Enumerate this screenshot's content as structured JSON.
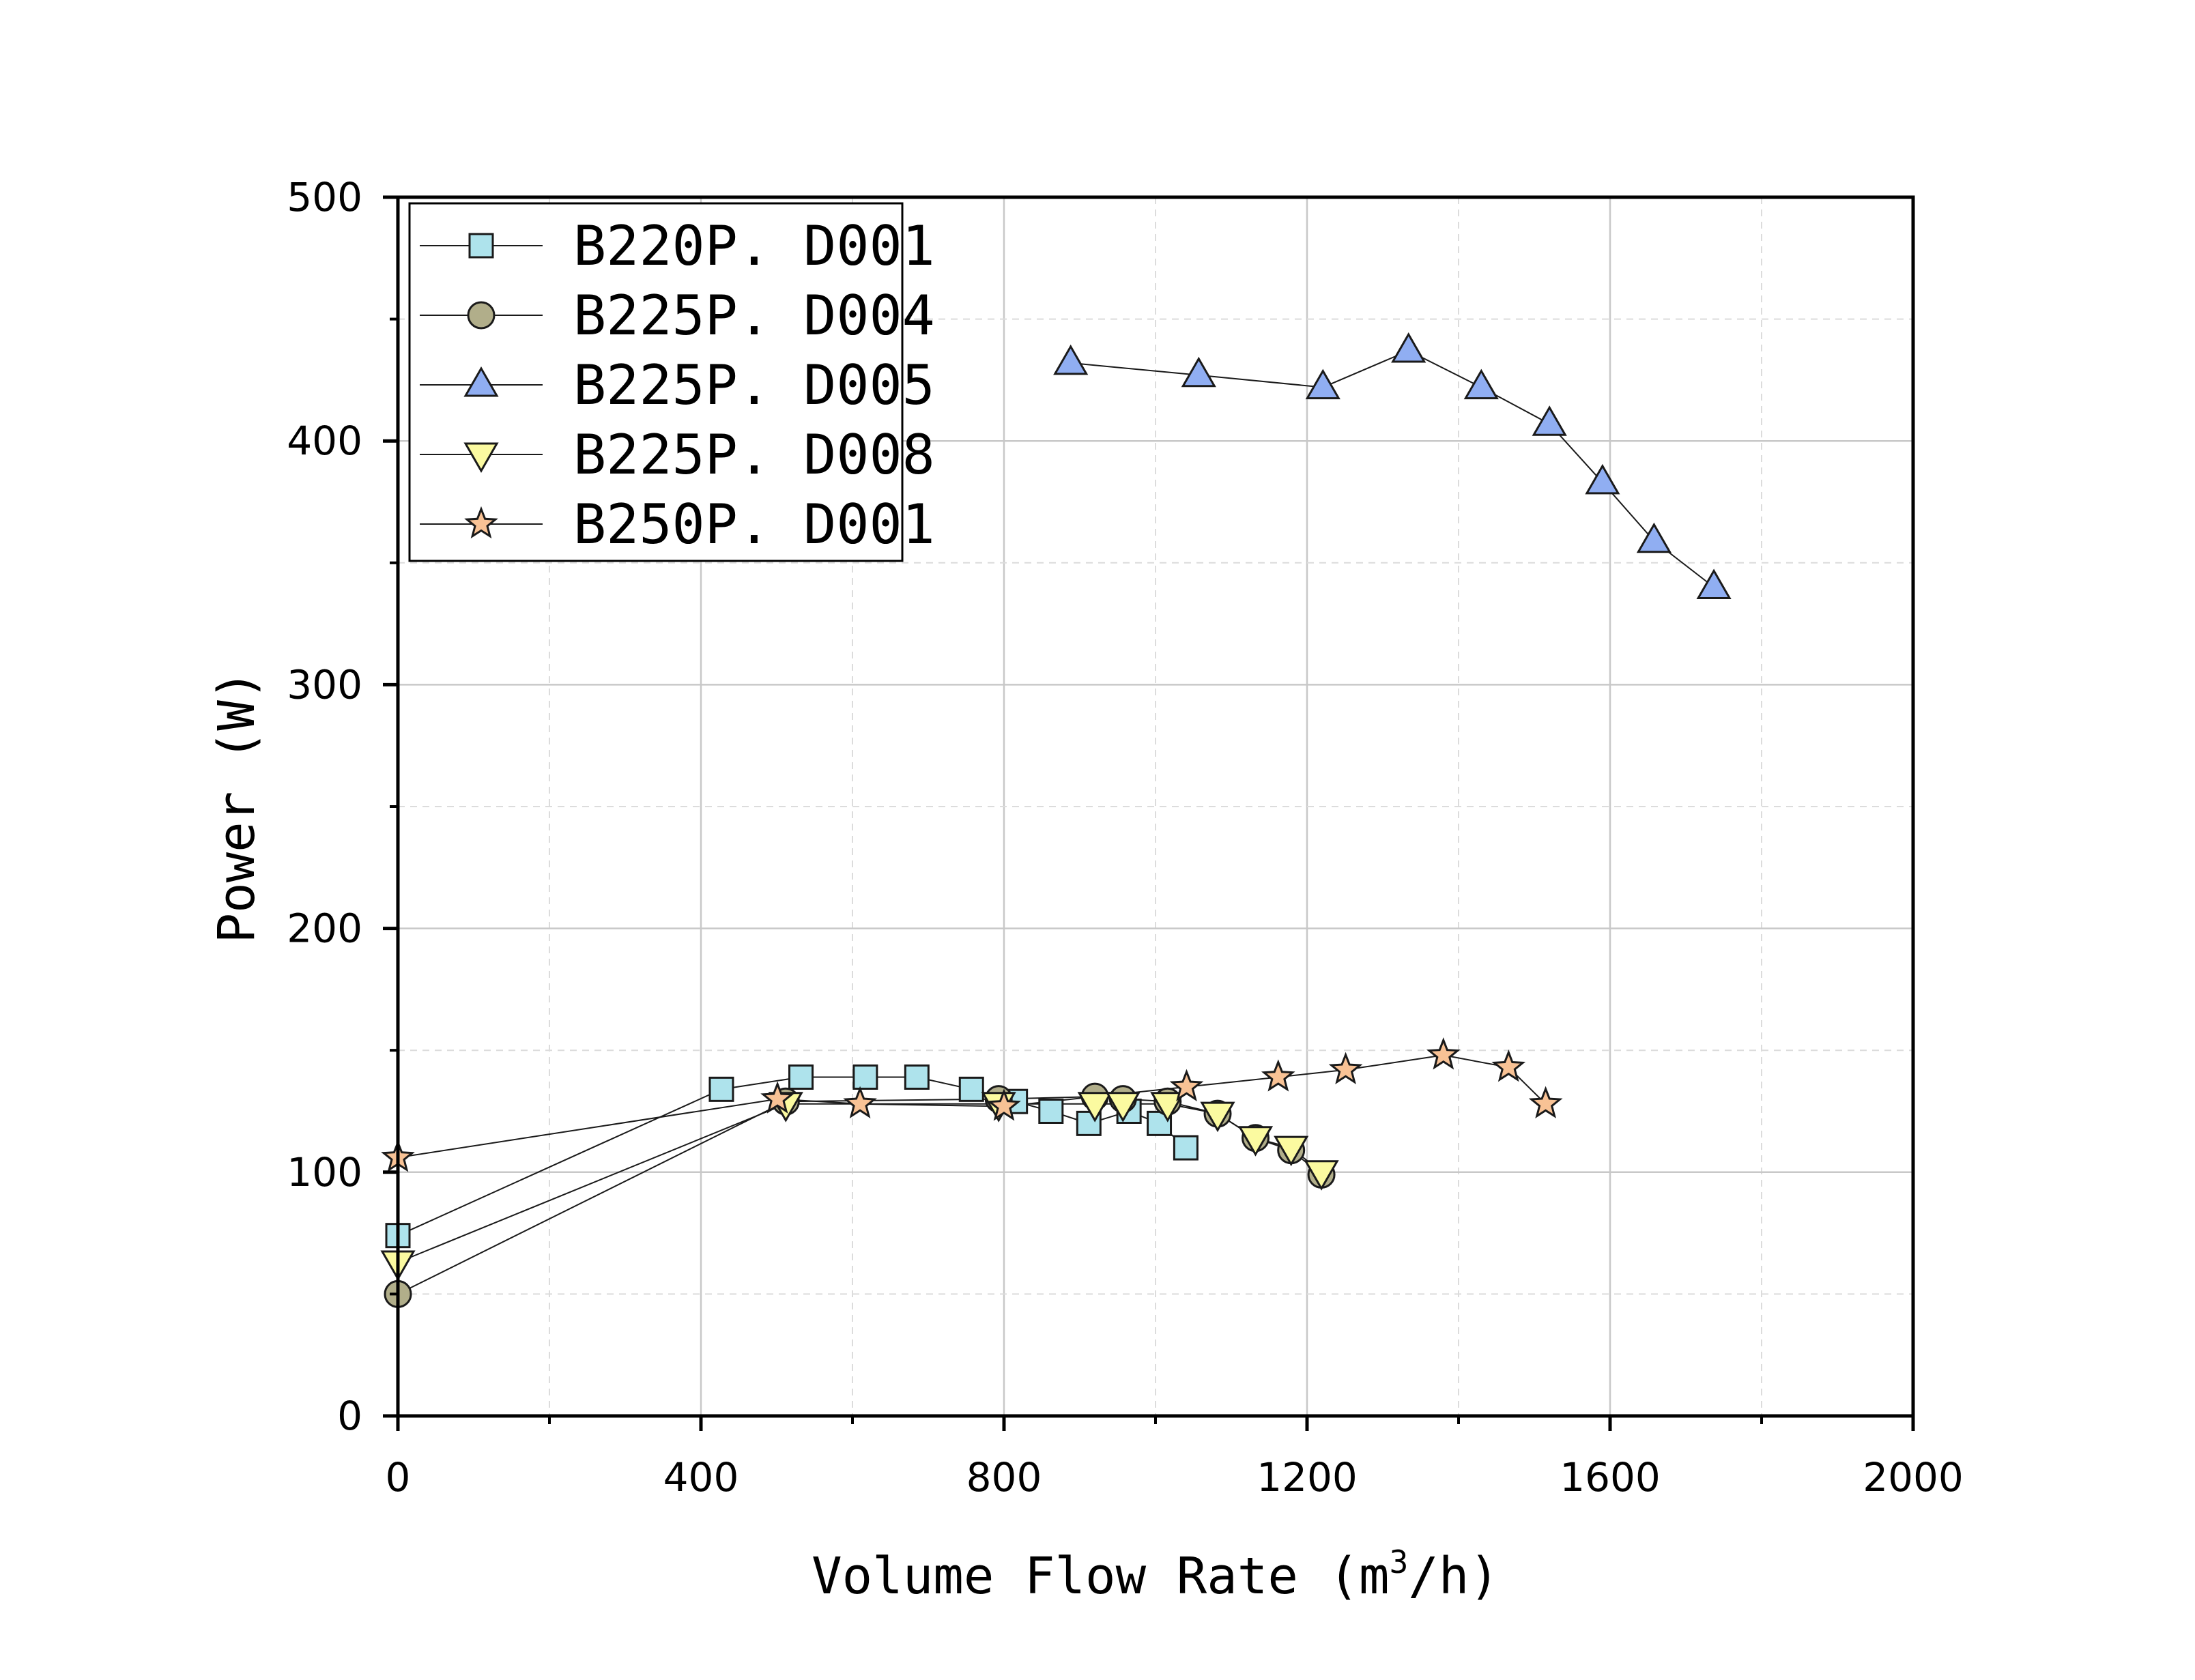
{
  "chart_data": {
    "type": "line",
    "title": "",
    "xlabel_main": "Volume Flow Rate (m",
    "xlabel_sup": "3",
    "xlabel_tail": "/h)",
    "ylabel": "Power (W)",
    "xlim": [
      0,
      2000
    ],
    "ylim": [
      0,
      500
    ],
    "x_ticks": [
      0,
      400,
      800,
      1200,
      1600,
      2000
    ],
    "x_minor_ticks": [
      200,
      600,
      1000,
      1400,
      1800
    ],
    "y_ticks": [
      0,
      100,
      200,
      300,
      400,
      500
    ],
    "y_minor_ticks": [
      50,
      150,
      250,
      350,
      450
    ],
    "grid": true,
    "legend_position": "top-left",
    "series": [
      {
        "name": "B220P. D001",
        "marker": "square",
        "color": "#aee3ec",
        "points": [
          [
            0,
            74
          ],
          [
            427,
            134
          ],
          [
            532,
            139
          ],
          [
            617,
            139
          ],
          [
            685,
            139
          ],
          [
            757,
            134
          ],
          [
            815,
            129
          ],
          [
            862,
            125
          ],
          [
            912,
            120
          ],
          [
            965,
            125
          ],
          [
            1005,
            120
          ],
          [
            1040,
            110
          ]
        ]
      },
      {
        "name": "B225P. D004",
        "marker": "circle",
        "color": "#b1ae8a",
        "points": [
          [
            0,
            50
          ],
          [
            512,
            129
          ],
          [
            793,
            130
          ],
          [
            920,
            131
          ],
          [
            957,
            130
          ],
          [
            1016,
            129
          ],
          [
            1082,
            124
          ],
          [
            1132,
            114
          ],
          [
            1179,
            109
          ],
          [
            1219,
            99
          ]
        ]
      },
      {
        "name": "B225P. D005",
        "marker": "triangle-up",
        "color": "#90aef2",
        "points": [
          [
            888,
            432
          ],
          [
            1057,
            427
          ],
          [
            1221,
            422
          ],
          [
            1334,
            437
          ],
          [
            1430,
            422
          ],
          [
            1520,
            407
          ],
          [
            1590,
            383
          ],
          [
            1658,
            359
          ],
          [
            1737,
            340
          ]
        ]
      },
      {
        "name": "B225P. D008",
        "marker": "triangle-down",
        "color": "#fbfaa0",
        "points": [
          [
            0,
            63
          ],
          [
            512,
            128
          ],
          [
            793,
            128
          ],
          [
            920,
            128
          ],
          [
            957,
            128
          ],
          [
            1016,
            128
          ],
          [
            1082,
            124
          ],
          [
            1132,
            114
          ],
          [
            1179,
            110
          ],
          [
            1219,
            100
          ]
        ]
      },
      {
        "name": "B250P. D001",
        "marker": "star",
        "color": "#f8c295",
        "points": [
          [
            0,
            106
          ],
          [
            501,
            130
          ],
          [
            610,
            128
          ],
          [
            800,
            127
          ],
          [
            1041,
            135
          ],
          [
            1162,
            139
          ],
          [
            1251,
            142
          ],
          [
            1380,
            148
          ],
          [
            1466,
            143
          ],
          [
            1515,
            128
          ]
        ]
      }
    ]
  }
}
